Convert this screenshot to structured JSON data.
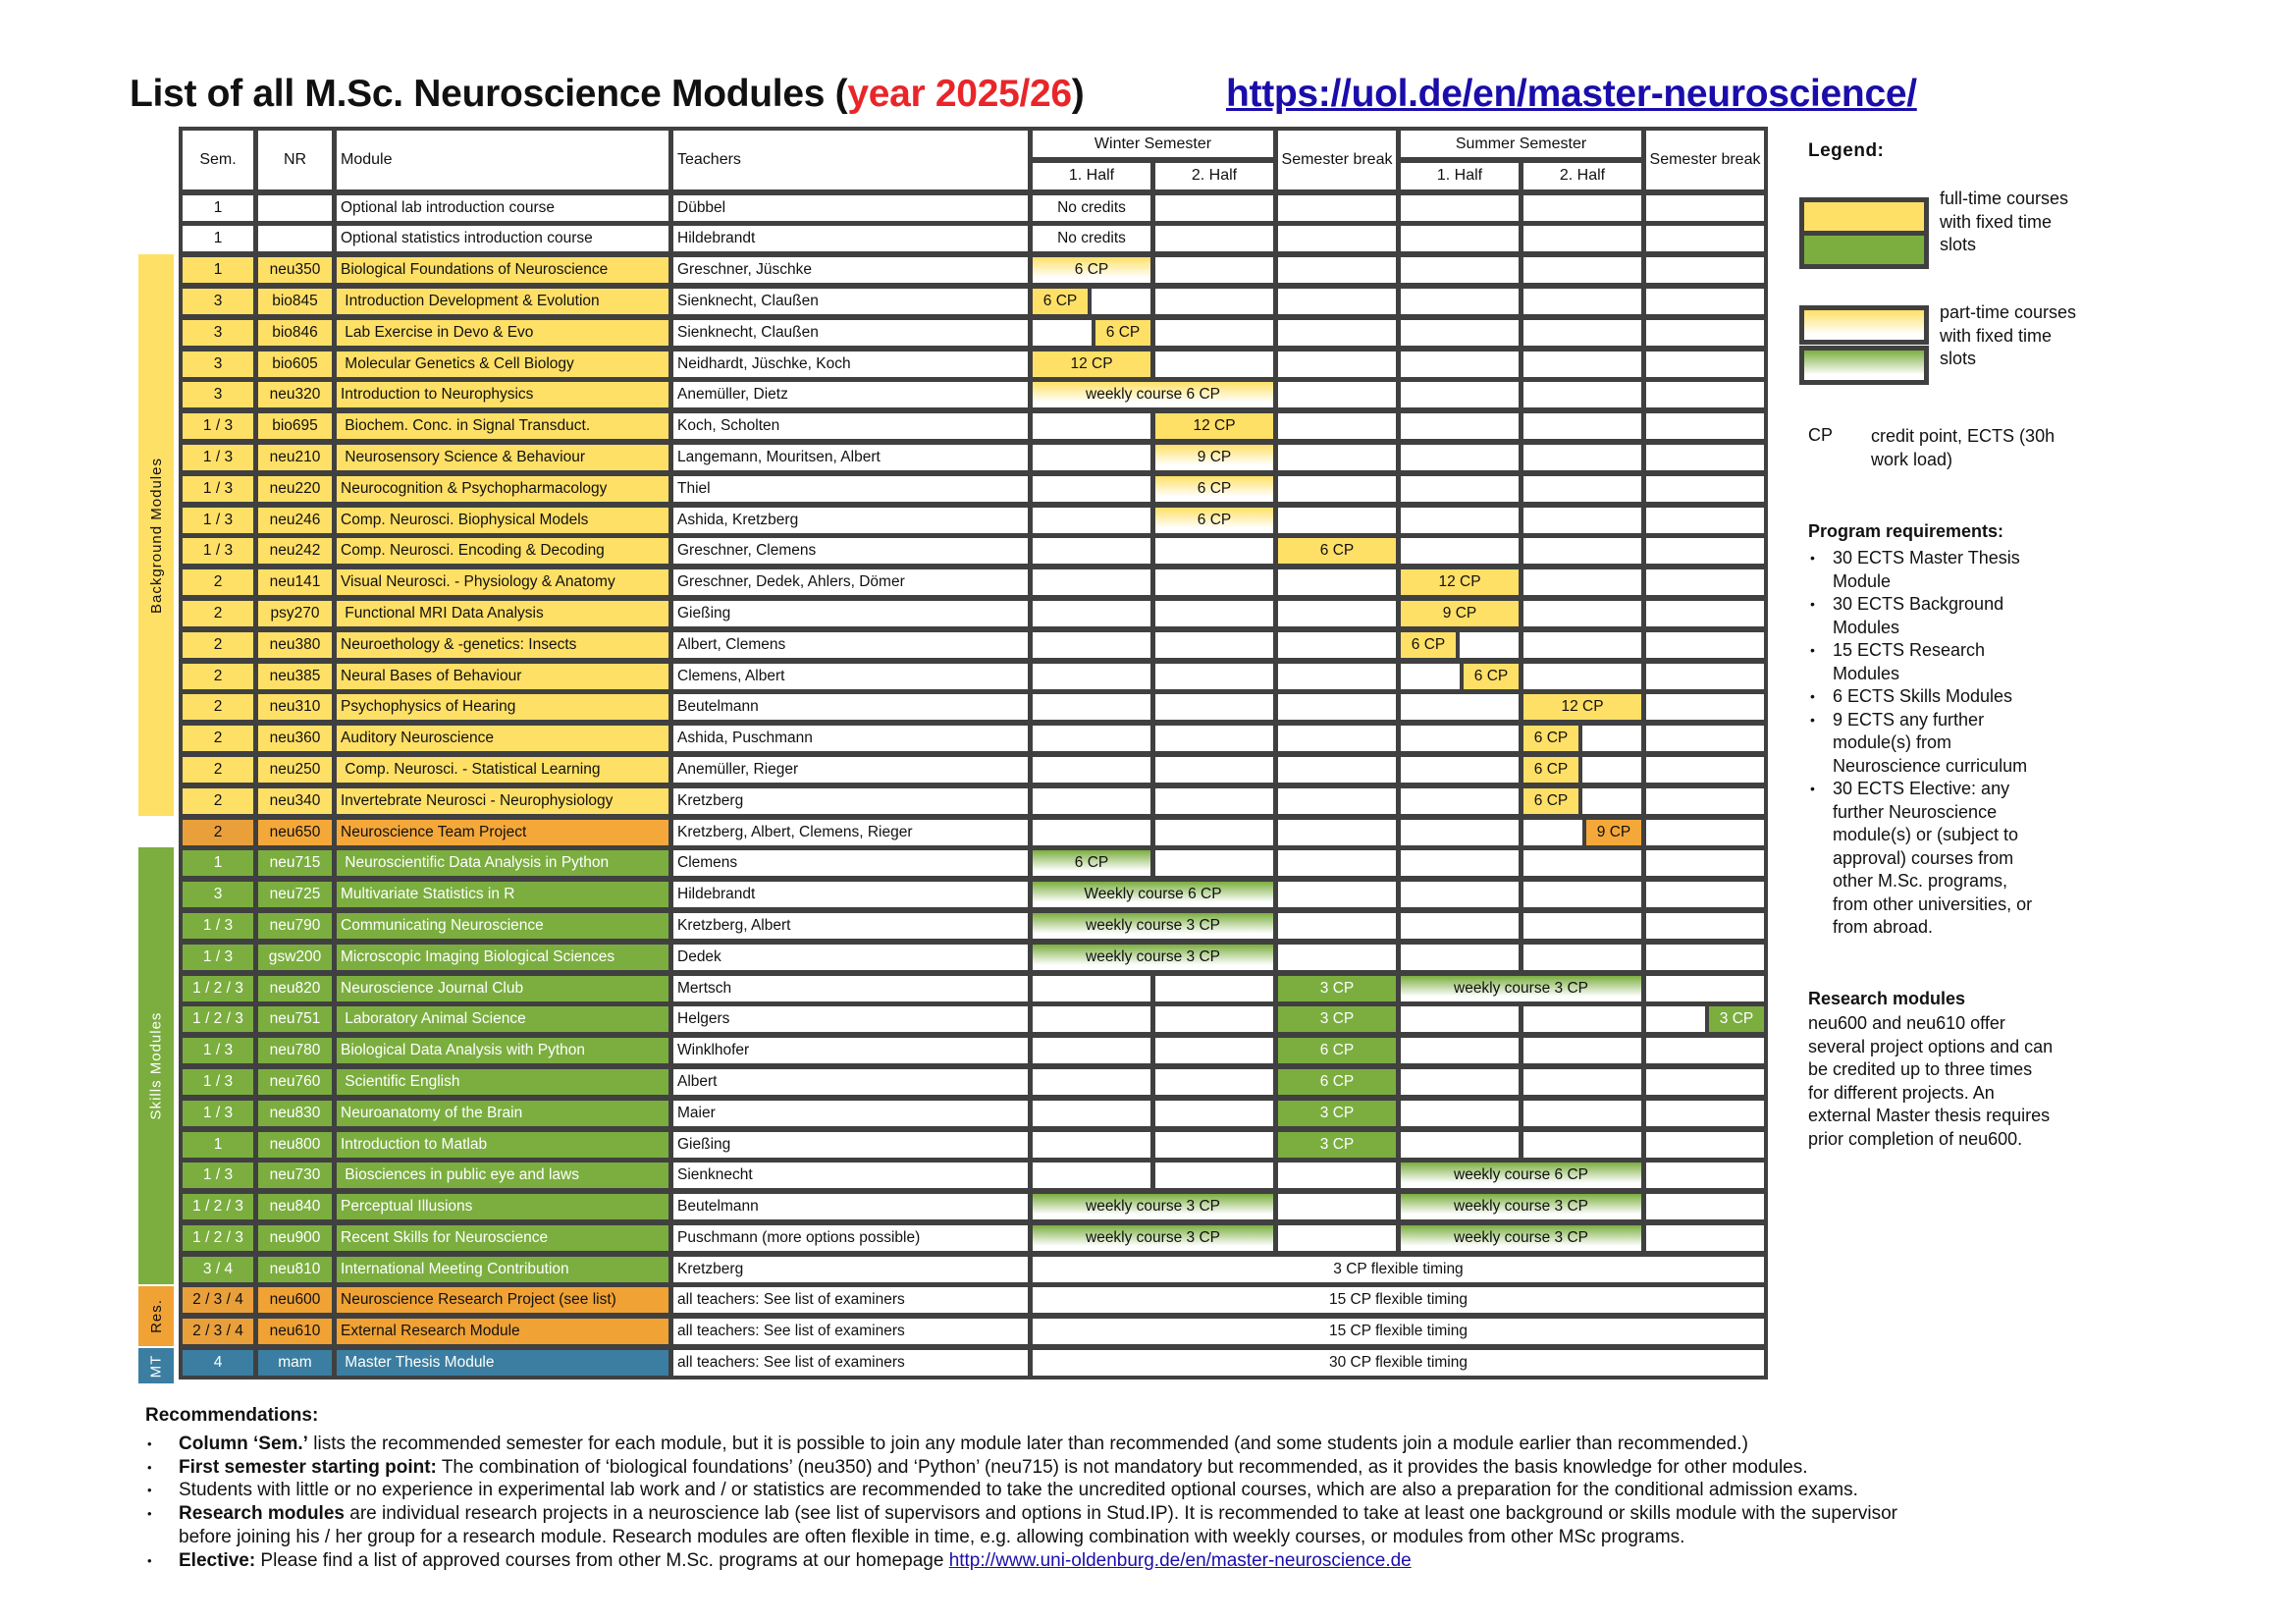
{
  "title": {
    "main": "List of all M.Sc. Neuroscience Modules (",
    "year": "year 2025/26",
    "close": ")",
    "link": "https://uol.de/en/master-neuroscience/"
  },
  "colors": {
    "background": "#FFE066",
    "team": "#F5A83A",
    "skills": "#7BAE3F",
    "research": "#F0A235",
    "thesis": "#3B7EA1",
    "none": "#FFFFFF",
    "grid": "#404040",
    "year": "#E8262A",
    "link": "#1A0DAB"
  },
  "table": {
    "headers": {
      "sem": "Sem.",
      "nr": "NR",
      "module": "Module",
      "teachers": "Teachers",
      "winter": "Winter Semester",
      "summer": "Summer Semester",
      "break1": "Semester break",
      "break2": "Semester break",
      "half1": "1. Half",
      "half2": "2. Half"
    },
    "rows": [
      {
        "sem": "1",
        "nr": "",
        "module": "Optional lab introduction course",
        "teachers": "Dübbel",
        "category": "none",
        "slots": [
          {
            "from": "W1",
            "to": "W1",
            "text": "No credits",
            "fill": "plain"
          }
        ]
      },
      {
        "sem": "1",
        "nr": "",
        "module": "Optional statistics introduction course",
        "teachers": "Hildebrandt",
        "category": "none",
        "slots": [
          {
            "from": "W1",
            "to": "W1",
            "text": "No credits",
            "fill": "plain"
          }
        ]
      },
      {
        "sem": "1",
        "nr": "neu350",
        "module": "Biological Foundations of Neuroscience",
        "teachers": "Greschner, Jüschke",
        "category": "background",
        "slots": [
          {
            "from": "W1",
            "to": "W1",
            "text": "6 CP",
            "fill": "part"
          }
        ]
      },
      {
        "sem": "3",
        "nr": "bio845",
        "module": " Introduction Development & Evolution",
        "teachers": "Sienknecht, Claußen",
        "category": "background",
        "slots": [
          {
            "from": "W1",
            "to": "W1",
            "part": "early",
            "text": "6 CP",
            "fill": "full"
          }
        ]
      },
      {
        "sem": "3",
        "nr": "bio846",
        "module": " Lab Exercise in Devo & Evo",
        "teachers": "Sienknecht, Claußen",
        "category": "background",
        "slots": [
          {
            "from": "W1",
            "to": "W1",
            "part": "late",
            "text": "6 CP",
            "fill": "full"
          }
        ]
      },
      {
        "sem": "3",
        "nr": "bio605",
        "module": " Molecular Genetics & Cell Biology",
        "teachers": "Neidhardt, Jüschke, Koch",
        "category": "background",
        "slots": [
          {
            "from": "W1",
            "to": "W1",
            "text": "12 CP",
            "fill": "full"
          }
        ]
      },
      {
        "sem": "3",
        "nr": "neu320",
        "module": "Introduction to Neurophysics",
        "teachers": "Anemüller, Dietz",
        "category": "background",
        "slots": [
          {
            "from": "W1",
            "to": "W2",
            "text": "weekly course 6 CP",
            "fill": "part"
          }
        ]
      },
      {
        "sem": "1 / 3",
        "nr": "bio695",
        "module": " Biochem. Conc. in Signal Transduct.",
        "teachers": "Koch, Scholten",
        "category": "background",
        "slots": [
          {
            "from": "W2",
            "to": "W2",
            "text": "12 CP",
            "fill": "full"
          }
        ]
      },
      {
        "sem": "1 / 3",
        "nr": "neu210",
        "module": " Neurosensory Science & Behaviour",
        "teachers": "Langemann, Mouritsen, Albert",
        "category": "background",
        "slots": [
          {
            "from": "W2",
            "to": "W2",
            "text": "9 CP",
            "fill": "part"
          }
        ]
      },
      {
        "sem": "1 / 3",
        "nr": "neu220",
        "module": "Neurocognition & Psychopharmacology",
        "teachers": "Thiel",
        "category": "background",
        "slots": [
          {
            "from": "W2",
            "to": "W2",
            "text": "6 CP",
            "fill": "part"
          }
        ]
      },
      {
        "sem": "1 / 3",
        "nr": "neu246",
        "module": "Comp. Neurosci. Biophysical Models",
        "teachers": "Ashida, Kretzberg",
        "category": "background",
        "slots": [
          {
            "from": "W2",
            "to": "W2",
            "text": "6 CP",
            "fill": "part"
          }
        ]
      },
      {
        "sem": "1 / 3",
        "nr": "neu242",
        "module": "Comp. Neurosci. Encoding & Decoding",
        "teachers": "Greschner, Clemens",
        "category": "background",
        "slots": [
          {
            "from": "WB",
            "to": "WB",
            "text": "6 CP",
            "fill": "full"
          }
        ]
      },
      {
        "sem": "2",
        "nr": "neu141",
        "module": "Visual Neurosci. - Physiology & Anatomy",
        "teachers": "Greschner, Dedek, Ahlers, Dömer",
        "category": "background",
        "slots": [
          {
            "from": "S1",
            "to": "S1",
            "text": "12 CP",
            "fill": "full"
          }
        ]
      },
      {
        "sem": "2",
        "nr": "psy270",
        "module": " Functional MRI Data Analysis",
        "teachers": "Gießing",
        "category": "background",
        "slots": [
          {
            "from": "S1",
            "to": "S1",
            "text": "9 CP",
            "fill": "full"
          }
        ]
      },
      {
        "sem": "2",
        "nr": "neu380",
        "module": "Neuroethology & -genetics: Insects",
        "teachers": "Albert, Clemens",
        "category": "background",
        "slots": [
          {
            "from": "S1",
            "to": "S1",
            "part": "early",
            "text": "6 CP",
            "fill": "full"
          }
        ]
      },
      {
        "sem": "2",
        "nr": "neu385",
        "module": "Neural Bases of Behaviour",
        "teachers": "Clemens, Albert",
        "category": "background",
        "slots": [
          {
            "from": "S1",
            "to": "S1",
            "part": "late",
            "text": "6 CP",
            "fill": "full"
          }
        ]
      },
      {
        "sem": "2",
        "nr": "neu310",
        "module": "Psychophysics of Hearing",
        "teachers": "Beutelmann",
        "category": "background",
        "slots": [
          {
            "from": "S2",
            "to": "S2",
            "text": "12 CP",
            "fill": "full"
          }
        ]
      },
      {
        "sem": "2",
        "nr": "neu360",
        "module": "Auditory Neuroscience",
        "teachers": "Ashida, Puschmann",
        "category": "background",
        "slots": [
          {
            "from": "S2",
            "to": "S2",
            "part": "early",
            "text": "6 CP",
            "fill": "full"
          }
        ]
      },
      {
        "sem": "2",
        "nr": "neu250",
        "module": " Comp. Neurosci. - Statistical Learning",
        "teachers": "Anemüller, Rieger",
        "category": "background",
        "slots": [
          {
            "from": "S2",
            "to": "S2",
            "part": "early",
            "text": "6 CP",
            "fill": "full"
          }
        ]
      },
      {
        "sem": "2",
        "nr": "neu340",
        "module": "Invertebrate Neurosci - Neurophysiology",
        "teachers": "Kretzberg",
        "category": "background",
        "slots": [
          {
            "from": "S2",
            "to": "S2",
            "part": "early",
            "text": "6 CP",
            "fill": "full"
          }
        ]
      },
      {
        "sem": "2",
        "nr": "neu650",
        "module": "Neuroscience Team Project",
        "teachers": "Kretzberg, Albert, Clemens, Rieger",
        "category": "team",
        "slots": [
          {
            "from": "S2",
            "to": "S2",
            "part": "late",
            "text": "9 CP",
            "fill": "full"
          }
        ]
      },
      {
        "sem": "1",
        "nr": "neu715",
        "module": " Neuroscientific Data Analysis in Python",
        "teachers": "Clemens",
        "category": "skills",
        "slots": [
          {
            "from": "W1",
            "to": "W1",
            "text": "6 CP",
            "fill": "part"
          }
        ]
      },
      {
        "sem": "3",
        "nr": "neu725",
        "module": "Multivariate Statistics in R",
        "teachers": "Hildebrandt",
        "category": "skills",
        "slots": [
          {
            "from": "W1",
            "to": "W2",
            "text": "Weekly course 6 CP",
            "fill": "part"
          }
        ]
      },
      {
        "sem": "1 / 3",
        "nr": "neu790",
        "module": "Communicating Neuroscience",
        "teachers": "Kretzberg, Albert",
        "category": "skills",
        "slots": [
          {
            "from": "W1",
            "to": "W2",
            "text": "weekly course 3 CP",
            "fill": "part"
          }
        ]
      },
      {
        "sem": "1 / 3",
        "nr": "gsw200",
        "module": "Microscopic Imaging Biological Sciences",
        "teachers": "Dedek",
        "category": "skills",
        "slots": [
          {
            "from": "W1",
            "to": "W2",
            "text": "weekly course 3 CP",
            "fill": "part"
          }
        ]
      },
      {
        "sem": "1 / 2 / 3",
        "nr": "neu820",
        "module": "Neuroscience Journal Club",
        "teachers": "Mertsch",
        "category": "skills",
        "slots": [
          {
            "from": "WB",
            "to": "WB",
            "text": "3 CP",
            "fill": "full"
          },
          {
            "from": "S1",
            "to": "S2",
            "text": "weekly course 3 CP",
            "fill": "part"
          }
        ]
      },
      {
        "sem": "1 / 2 / 3",
        "nr": "neu751",
        "module": " Laboratory Animal Science",
        "teachers": "Helgers",
        "category": "skills",
        "slots": [
          {
            "from": "WB",
            "to": "WB",
            "text": "3 CP",
            "fill": "full"
          },
          {
            "from": "SB",
            "to": "SB",
            "part": "late",
            "text": "3 CP",
            "fill": "full"
          }
        ]
      },
      {
        "sem": "1 / 3",
        "nr": "neu780",
        "module": "Biological Data Analysis with Python",
        "teachers": "Winklhofer",
        "category": "skills",
        "slots": [
          {
            "from": "WB",
            "to": "WB",
            "text": "6 CP",
            "fill": "full"
          }
        ]
      },
      {
        "sem": "1 / 3",
        "nr": "neu760",
        "module": " Scientific English",
        "teachers": "Albert",
        "category": "skills",
        "slots": [
          {
            "from": "WB",
            "to": "WB",
            "text": "6 CP",
            "fill": "full"
          }
        ]
      },
      {
        "sem": "1 / 3",
        "nr": "neu830",
        "module": "Neuroanatomy of the Brain",
        "teachers": "Maier",
        "category": "skills",
        "slots": [
          {
            "from": "WB",
            "to": "WB",
            "text": "3 CP",
            "fill": "full"
          }
        ]
      },
      {
        "sem": "1",
        "nr": "neu800",
        "module": "Introduction to Matlab",
        "teachers": "Gießing",
        "category": "skills",
        "slots": [
          {
            "from": "WB",
            "to": "WB",
            "text": "3 CP",
            "fill": "full"
          }
        ]
      },
      {
        "sem": "1 / 3",
        "nr": "neu730",
        "module": " Biosciences in public eye and laws",
        "teachers": "Sienknecht",
        "category": "skills",
        "slots": [
          {
            "from": "S1",
            "to": "S2",
            "text": "weekly course 6 CP",
            "fill": "part"
          }
        ]
      },
      {
        "sem": "1 / 2 / 3",
        "nr": "neu840",
        "module": "Perceptual Illusions",
        "teachers": "Beutelmann",
        "category": "skills",
        "slots": [
          {
            "from": "W1",
            "to": "W2",
            "text": "weekly course 3 CP",
            "fill": "part"
          },
          {
            "from": "S1",
            "to": "S2",
            "text": "weekly course 3 CP",
            "fill": "part"
          }
        ]
      },
      {
        "sem": "1 / 2 / 3",
        "nr": "neu900",
        "module": "Recent Skills for Neuroscience",
        "teachers": "Puschmann (more options possible)",
        "category": "skills",
        "slots": [
          {
            "from": "W1",
            "to": "W2",
            "text": "weekly course 3 CP",
            "fill": "part"
          },
          {
            "from": "S1",
            "to": "S2",
            "text": "weekly course 3 CP",
            "fill": "part"
          }
        ]
      },
      {
        "sem": "3 / 4",
        "nr": "neu810",
        "module": "International Meeting Contribution",
        "teachers": "Kretzberg",
        "category": "skills",
        "slots": [
          {
            "from": "W1",
            "to": "SB",
            "text": "3 CP flexible timing",
            "fill": "plain"
          }
        ]
      },
      {
        "sem": "2 / 3 / 4",
        "nr": "neu600",
        "module": "Neuroscience Research Project (see list)",
        "teachers": "all teachers: See list of examiners",
        "category": "research",
        "slots": [
          {
            "from": "W1",
            "to": "SB",
            "text": "15 CP flexible timing",
            "fill": "plain"
          }
        ]
      },
      {
        "sem": "2 / 3 / 4",
        "nr": "neu610",
        "module": "External Research Module",
        "teachers": "all teachers: See list of examiners",
        "category": "research",
        "slots": [
          {
            "from": "W1",
            "to": "SB",
            "text": "15 CP flexible timing",
            "fill": "plain"
          }
        ]
      },
      {
        "sem": "4",
        "nr": "mam",
        "module": " Master Thesis Module",
        "teachers": "all teachers: See list of examiners",
        "category": "thesis",
        "slots": [
          {
            "from": "W1",
            "to": "SB",
            "text": "30 CP flexible timing",
            "fill": "plain"
          }
        ]
      }
    ]
  },
  "categories": {
    "background": "Background Modules",
    "skills": "Skills Modules",
    "research": "Res.",
    "thesis": "MT"
  },
  "legend": {
    "title": "Legend:",
    "fulltime": "full-time courses with fixed time slots",
    "parttime": "part-time courses with fixed time slots",
    "cp_abbr": "CP",
    "cp_def": "credit point, ECTS (30h work load)"
  },
  "requirements": {
    "title": "Program requirements:",
    "items": [
      "30 ECTS Master Thesis Module",
      "30 ECTS Background Modules",
      "15 ECTS Research Modules",
      "6 ECTS Skills Modules",
      "9 ECTS any further module(s) from Neuroscience curriculum",
      "30 ECTS Elective: any further Neuroscience module(s) or (subject to approval) courses from other M.Sc. programs, from other universities, or from abroad."
    ]
  },
  "research_modules": {
    "title": "Research modules",
    "text": "neu600 and neu610 offer several project options and can be credited up to three times for different projects. An external Master thesis requires prior completion of neu600."
  },
  "recommendations": {
    "title": "Recommendations:",
    "items": [
      {
        "bold": "Column ‘Sem.’",
        "text": " lists the recommended semester for each module, but it is possible to join any module later than recommended (and some students join a module earlier than recommended.)"
      },
      {
        "bold": "First semester starting point:",
        "text": " The combination of ‘biological foundations’ (neu350) and ‘Python’ (neu715) is not mandatory but recommended, as it provides the basis knowledge for other modules."
      },
      {
        "bold": "",
        "text": "Students with little or no experience in experimental lab work and / or statistics are recommended to take the uncredited optional courses, which are also a preparation for the conditional admission exams."
      },
      {
        "bold": "Research modules",
        "text": " are individual research projects in a neuroscience lab (see list of supervisors and options in Stud.IP). It is recommended to take at least one background or skills module with the supervisor before joining his / her group for a research module. Research modules are often flexible in time, e.g. allowing combination with weekly courses, or modules from other MSc programs."
      },
      {
        "bold": "Elective:",
        "text": " Please find a list of approved courses from other M.Sc. programs at our homepage ",
        "link": "http://www.uni-oldenburg.de/en/master-neuroscience.de"
      }
    ]
  }
}
